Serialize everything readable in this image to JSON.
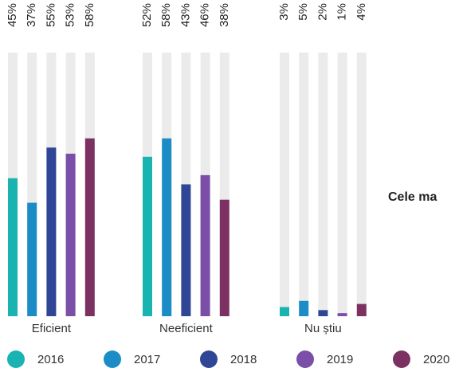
{
  "chart_data": {
    "type": "bar",
    "categories": [
      "Eficient",
      "Neeficient",
      "Nu știu"
    ],
    "series": [
      {
        "name": "2016",
        "color": "#19b3b1",
        "values": [
          45,
          52,
          3
        ],
        "value_labels": [
          "45%",
          "52%",
          "3%"
        ]
      },
      {
        "name": "2017",
        "color": "#1b8cc6",
        "values": [
          37,
          58,
          5
        ],
        "value_labels": [
          "37%",
          "58%",
          "5%"
        ]
      },
      {
        "name": "2018",
        "color": "#2f4596",
        "values": [
          55,
          43,
          2
        ],
        "value_labels": [
          "55%",
          "43%",
          "2%"
        ]
      },
      {
        "name": "2019",
        "color": "#7b4fa7",
        "values": [
          53,
          46,
          1
        ],
        "value_labels": [
          "53%",
          "46%",
          "1%"
        ]
      },
      {
        "name": "2020",
        "color": "#7b3262",
        "values": [
          58,
          38,
          4
        ],
        "value_labels": [
          "58%",
          "38%",
          "4%"
        ]
      }
    ],
    "ylim": [
      0,
      100
    ],
    "annotation": "Cele ma",
    "legend": "bottom"
  }
}
